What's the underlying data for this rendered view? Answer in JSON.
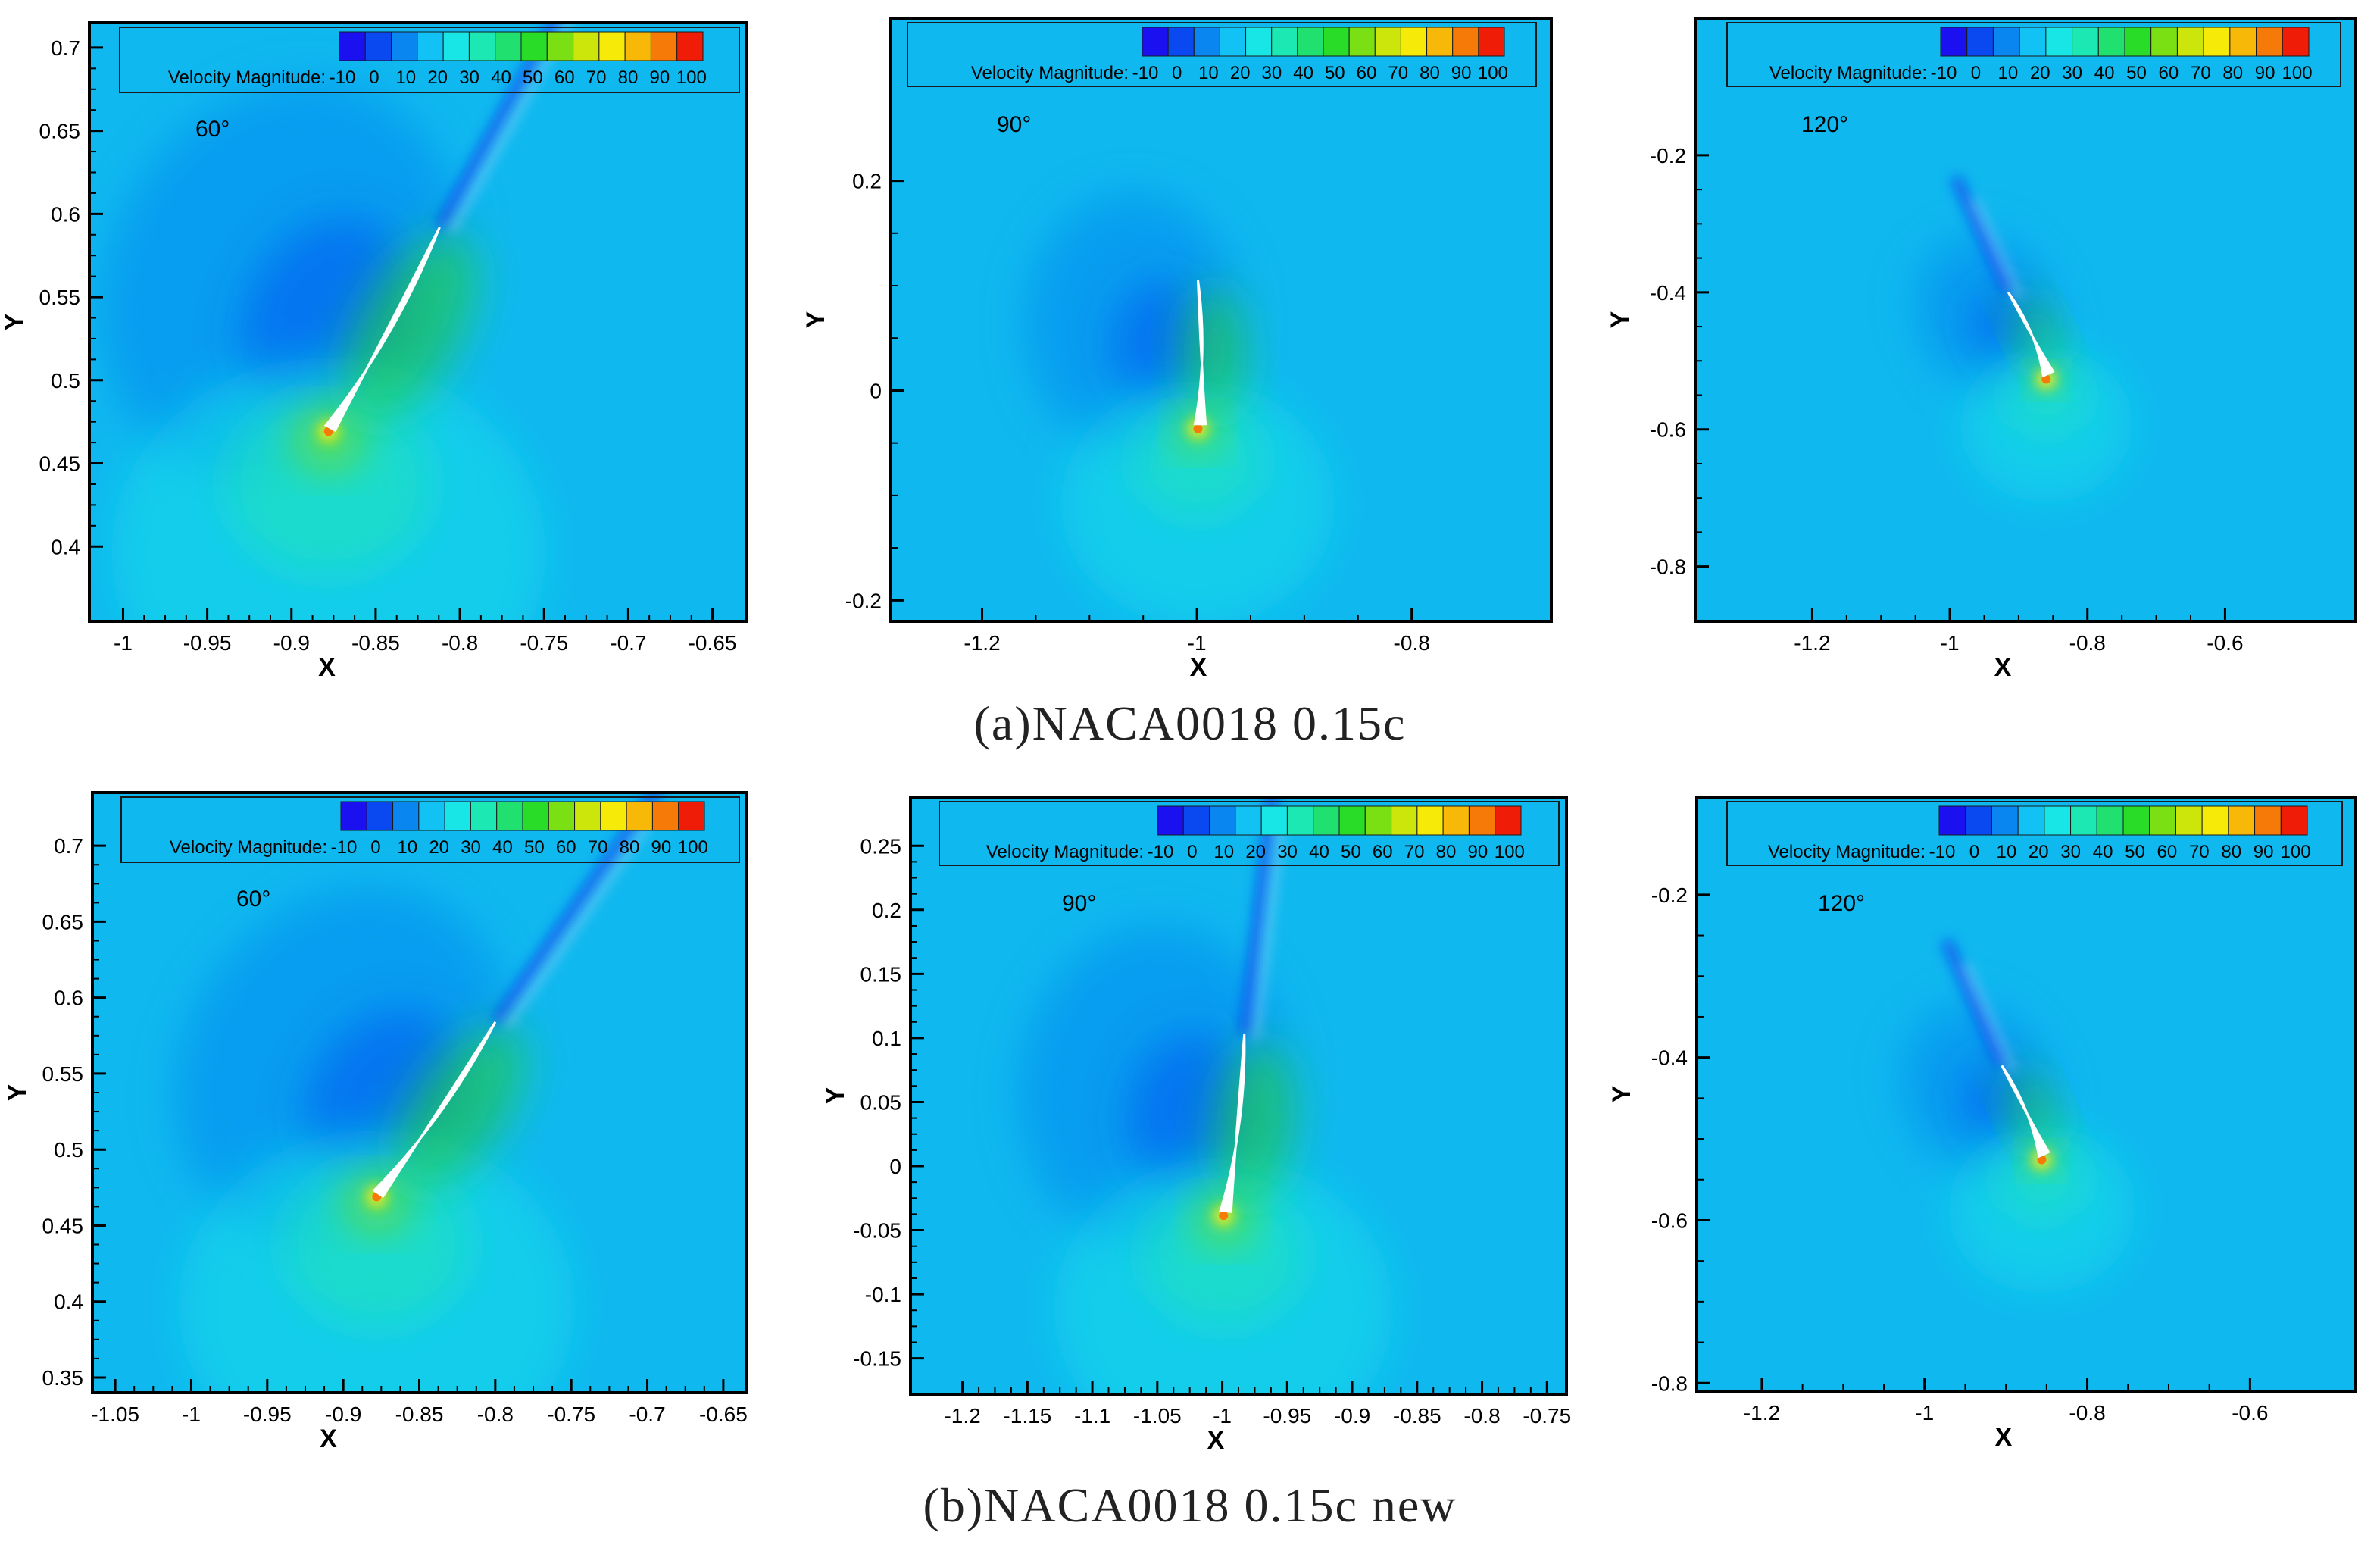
{
  "colors": {
    "background": "#0fb8ef",
    "ramp": [
      "#1a10f0",
      "#0a48f0",
      "#0a86f0",
      "#12c2f5",
      "#18e6e6",
      "#1ce8b4",
      "#20e070",
      "#28dc28",
      "#7ae014",
      "#cce50a",
      "#f5ea08",
      "#f7b808",
      "#f57a08",
      "#ef1c08"
    ]
  },
  "captions": {
    "row_a": "(a)NACA0018 0.15c",
    "row_b": "(b)NACA0018 0.15c new"
  },
  "chart_data": [
    {
      "type": "heatmap",
      "row": "a",
      "angle_label": "60°",
      "legend": {
        "label": "Velocity Magnitude:",
        "ticks": [
          "-10",
          "0",
          "10",
          "20",
          "30",
          "40",
          "50",
          "60",
          "70",
          "80",
          "90",
          "100"
        ]
      },
      "xlabel": "X",
      "ylabel": "Y",
      "xlim": [
        -1.02,
        -0.63
      ],
      "ylim": [
        0.355,
        0.715
      ],
      "xticks": [
        -1,
        -0.95,
        -0.9,
        -0.85,
        -0.8,
        -0.75,
        -0.7,
        -0.65
      ],
      "yticks": [
        0.4,
        0.45,
        0.5,
        0.55,
        0.6,
        0.65,
        0.7
      ],
      "xtick_labels": [
        "-1",
        "-0.95",
        "-0.9",
        "-0.85",
        "-0.8",
        "-0.75",
        "-0.7",
        "-0.65"
      ],
      "ytick_labels": [
        "0.4",
        "0.45",
        "0.5",
        "0.55",
        "0.6",
        "0.65",
        "0.7"
      ],
      "blade": {
        "le": [
          -0.878,
          0.472
        ],
        "te": [
          -0.812,
          0.592
        ]
      }
    },
    {
      "type": "heatmap",
      "row": "a",
      "angle_label": "90°",
      "legend": {
        "label": "Velocity Magnitude:",
        "ticks": [
          "-10",
          "0",
          "10",
          "20",
          "30",
          "40",
          "50",
          "60",
          "70",
          "80",
          "90",
          "100"
        ]
      },
      "xlabel": "X",
      "ylabel": "Y",
      "xlim": [
        -1.285,
        -0.67
      ],
      "ylim": [
        -0.22,
        0.355
      ],
      "xticks": [
        -1.2,
        -1,
        -0.8
      ],
      "yticks": [
        -0.2,
        0,
        0.2
      ],
      "xtick_labels": [
        "-1.2",
        "-1",
        "-0.8"
      ],
      "ytick_labels": [
        "-0.2",
        "0",
        "0.2"
      ],
      "blade": {
        "le": [
          -0.999,
          -0.032
        ],
        "te": [
          -0.999,
          0.105
        ]
      }
    },
    {
      "type": "heatmap",
      "row": "a",
      "angle_label": "120°",
      "legend": {
        "label": "Velocity Magnitude:",
        "ticks": [
          "-10",
          "0",
          "10",
          "20",
          "30",
          "40",
          "50",
          "60",
          "70",
          "80",
          "90",
          "100"
        ]
      },
      "xlabel": "X",
      "ylabel": "Y",
      "xlim": [
        -1.37,
        -0.41
      ],
      "ylim": [
        -0.88,
        0.0
      ],
      "xticks": [
        -1.2,
        -1,
        -0.8,
        -0.6
      ],
      "yticks": [
        -0.8,
        -0.6,
        -0.4,
        -0.2
      ],
      "xtick_labels": [
        "-1.2",
        "-1",
        "-0.8",
        "-0.6"
      ],
      "ytick_labels": [
        "-0.8",
        "-0.6",
        "-0.4",
        "-0.2"
      ],
      "blade": {
        "le": [
          -0.86,
          -0.52
        ],
        "te": [
          -0.915,
          -0.4
        ]
      }
    },
    {
      "type": "heatmap",
      "row": "b",
      "angle_label": "60°",
      "legend": {
        "label": "Velocity Magnitude:",
        "ticks": [
          "-10",
          "0",
          "10",
          "20",
          "30",
          "40",
          "50",
          "60",
          "70",
          "80",
          "90",
          "100"
        ]
      },
      "xlabel": "X",
      "ylabel": "Y",
      "xlim": [
        -1.065,
        -0.635
      ],
      "ylim": [
        0.34,
        0.735
      ],
      "xticks": [
        -1.05,
        -1,
        -0.95,
        -0.9,
        -0.85,
        -0.8,
        -0.75,
        -0.7,
        -0.65
      ],
      "yticks": [
        0.35,
        0.4,
        0.45,
        0.5,
        0.55,
        0.6,
        0.65,
        0.7
      ],
      "xtick_labels": [
        "-1.05",
        "-1",
        "-0.95",
        "-0.9",
        "-0.85",
        "-0.8",
        "-0.75",
        "-0.7",
        "-0.65"
      ],
      "ytick_labels": [
        "0.35",
        "0.4",
        "0.45",
        "0.5",
        "0.55",
        "0.6",
        "0.65",
        "0.7"
      ],
      "blade": {
        "le": [
          -0.878,
          0.472
        ],
        "te": [
          -0.8,
          0.584
        ]
      }
    },
    {
      "type": "heatmap",
      "row": "b",
      "angle_label": "90°",
      "legend": {
        "label": "Velocity Magnitude:",
        "ticks": [
          "-10",
          "0",
          "10",
          "20",
          "30",
          "40",
          "50",
          "60",
          "70",
          "80",
          "90",
          "100"
        ]
      },
      "xlabel": "X",
      "ylabel": "Y",
      "xlim": [
        -1.24,
        -0.735
      ],
      "ylim": [
        -0.178,
        0.288
      ],
      "xticks": [
        -1.2,
        -1.15,
        -1.1,
        -1.05,
        -1,
        -0.95,
        -0.9,
        -0.85,
        -0.8,
        -0.75
      ],
      "yticks": [
        -0.15,
        -0.1,
        -0.05,
        0,
        0.05,
        0.1,
        0.15,
        0.2,
        0.25
      ],
      "xtick_labels": [
        "-1.2",
        "-1.15",
        "-1.1",
        "-1.05",
        "-1",
        "-0.95",
        "-0.9",
        "-0.85",
        "-0.8",
        "-0.75"
      ],
      "ytick_labels": [
        "-0.15",
        "-0.1",
        "-0.05",
        "0",
        "0.05",
        "0.1",
        "0.15",
        "0.2",
        "0.25"
      ],
      "blade": {
        "le": [
          -0.999,
          -0.035
        ],
        "te": [
          -0.983,
          0.103
        ]
      }
    },
    {
      "type": "heatmap",
      "row": "b",
      "angle_label": "120°",
      "legend": {
        "label": "Velocity Magnitude:",
        "ticks": [
          "-10",
          "0",
          "10",
          "20",
          "30",
          "40",
          "50",
          "60",
          "70",
          "80",
          "90",
          "100"
        ]
      },
      "xlabel": "X",
      "ylabel": "Y",
      "xlim": [
        -1.28,
        -0.47
      ],
      "ylim": [
        -0.81,
        -0.08
      ],
      "xticks": [
        -1.2,
        -1,
        -0.8,
        -0.6
      ],
      "yticks": [
        -0.8,
        -0.6,
        -0.4,
        -0.2
      ],
      "xtick_labels": [
        "-1.2",
        "-1",
        "-0.8",
        "-0.6"
      ],
      "ytick_labels": [
        "-0.8",
        "-0.6",
        "-0.4",
        "-0.2"
      ],
      "blade": {
        "le": [
          -0.856,
          -0.52
        ],
        "te": [
          -0.905,
          -0.41
        ]
      }
    }
  ]
}
